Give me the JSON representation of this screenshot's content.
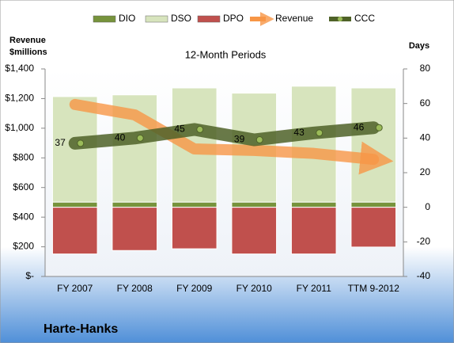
{
  "chart_data": {
    "type": "bar",
    "title": "12-Month Periods",
    "company": "Harte-Hanks",
    "y_label": "Revenue\n$millions",
    "y2_label": "Days",
    "categories": [
      "FY 2007",
      "FY 2008",
      "FY 2009",
      "FY 2010",
      "FY 2011",
      "TTM 9-2012"
    ],
    "ylim": [
      0,
      1400
    ],
    "yticks": [
      {
        "value": 0,
        "label": "$-"
      },
      {
        "value": 200,
        "label": "$200"
      },
      {
        "value": 400,
        "label": "$400"
      },
      {
        "value": 600,
        "label": "$600"
      },
      {
        "value": 800,
        "label": "$800"
      },
      {
        "value": 1000,
        "label": "$1,000"
      },
      {
        "value": 1200,
        "label": "$1,200"
      },
      {
        "value": 1400,
        "label": "$1,400"
      }
    ],
    "y2lim": [
      -40,
      80
    ],
    "y2ticks": [
      -40,
      -20,
      0,
      20,
      40,
      60,
      80
    ],
    "legend": "top",
    "series": [
      {
        "name": "DIO",
        "type": "bar",
        "axis": "y2",
        "color": "#77933c",
        "values": [
          3,
          3,
          3,
          3,
          3,
          3
        ]
      },
      {
        "name": "DSO",
        "type": "bar",
        "axis": "y2",
        "color": "#d7e4bd",
        "values": [
          61,
          62,
          66,
          63,
          67,
          66
        ]
      },
      {
        "name": "DPO",
        "type": "bar",
        "axis": "y2",
        "color": "#c0504d",
        "values": [
          -27,
          -25,
          -24,
          -27,
          -27,
          -23
        ]
      },
      {
        "name": "Revenue",
        "type": "arrow",
        "axis": "y",
        "color": "#f79646",
        "values": [
          1160,
          1090,
          860,
          850,
          830,
          790
        ]
      },
      {
        "name": "CCC",
        "type": "line",
        "axis": "y2",
        "color": "#4f6228",
        "values": [
          37,
          40,
          45,
          39,
          43,
          46
        ]
      }
    ]
  }
}
